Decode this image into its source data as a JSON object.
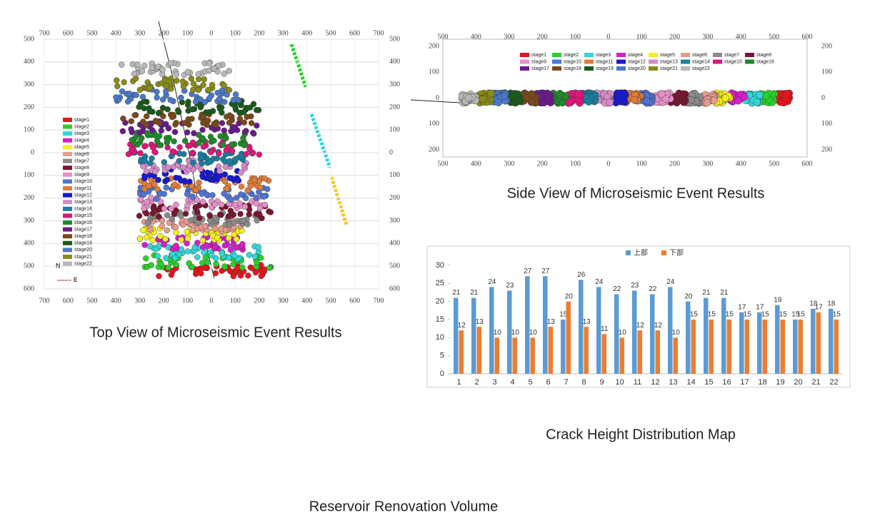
{
  "chart_data": [
    {
      "type": "cluster-scatter",
      "title": "Top View of Microseismic Event Results",
      "xlim": [
        -700,
        700
      ],
      "ylim": [
        -600,
        500
      ],
      "grid": true,
      "xticks": [
        {
          "value": -700,
          "label": "700"
        },
        {
          "value": -600,
          "label": "600"
        },
        {
          "value": -500,
          "label": "500"
        },
        {
          "value": -400,
          "label": "400"
        },
        {
          "value": -300,
          "label": "300"
        },
        {
          "value": -200,
          "label": "200"
        },
        {
          "value": -100,
          "label": "100"
        },
        0,
        100,
        200,
        300,
        400,
        500,
        600,
        700
      ],
      "yticks": [
        500,
        400,
        300,
        200,
        100,
        0,
        {
          "value": -100,
          "label": "100"
        },
        {
          "value": -200,
          "label": "200"
        },
        {
          "value": -300,
          "label": "300"
        },
        {
          "value": -400,
          "label": "400"
        },
        {
          "value": -500,
          "label": "500"
        },
        {
          "value": -600,
          "label": "600"
        }
      ],
      "compass": [
        "N",
        "E"
      ],
      "series": [
        {
          "name": "stage1",
          "color": "#e8141b",
          "x": [
            -220,
            250
          ],
          "y": -520
        },
        {
          "name": "stage2",
          "color": "#29d12a",
          "x": [
            -280,
            250
          ],
          "y": -480
        },
        {
          "name": "stage3",
          "color": "#2fd8d8",
          "x": [
            -260,
            200
          ],
          "y": -440
        },
        {
          "name": "stage4",
          "color": "#d81ec8",
          "x": [
            -300,
            150
          ],
          "y": -400
        },
        {
          "name": "stage5",
          "color": "#f5f01e",
          "x": [
            -300,
            130
          ],
          "y": -360
        },
        {
          "name": "stage6",
          "color": "#e89a8e",
          "x": [
            -300,
            150
          ],
          "y": -320
        },
        {
          "name": "stage7",
          "color": "#8a8a8a",
          "x": [
            -280,
            200
          ],
          "y": -290
        },
        {
          "name": "stage8",
          "color": "#7a1530",
          "x": [
            -310,
            250
          ],
          "y": -260
        },
        {
          "name": "stage9",
          "color": "#e58fc7",
          "x": [
            -300,
            250
          ],
          "y": -220
        },
        {
          "name": "stage10",
          "color": "#4f74d6",
          "x": [
            -300,
            250
          ],
          "y": -180
        },
        {
          "name": "stage11",
          "color": "#e07c3c",
          "x": [
            -300,
            250
          ],
          "y": -140
        },
        {
          "name": "stage12",
          "color": "#1818d0",
          "x": [
            -280,
            130
          ],
          "y": -100
        },
        {
          "name": "stage13",
          "color": "#d48cc8",
          "x": [
            -300,
            150
          ],
          "y": -60
        },
        {
          "name": "stage14",
          "color": "#1a7fa0",
          "x": [
            -330,
            180
          ],
          "y": -20
        },
        {
          "name": "stage15",
          "color": "#e0167a",
          "x": [
            -350,
            200
          ],
          "y": 20
        },
        {
          "name": "stage16",
          "color": "#1f8a2a",
          "x": [
            -350,
            150
          ],
          "y": 60
        },
        {
          "name": "stage17",
          "color": "#6a1a8a",
          "x": [
            -380,
            200
          ],
          "y": 110
        },
        {
          "name": "stage18",
          "color": "#7a4a1a",
          "x": [
            -370,
            180
          ],
          "y": 150
        },
        {
          "name": "stage19",
          "color": "#1a5a1a",
          "x": [
            -340,
            200
          ],
          "y": 200
        },
        {
          "name": "stage20",
          "color": "#4a78c8",
          "x": [
            -400,
            120
          ],
          "y": 250
        },
        {
          "name": "stage21",
          "color": "#8a8a1a",
          "x": [
            -400,
            80
          ],
          "y": 300
        },
        {
          "name": "stage22",
          "color": "#b8b8b8",
          "x": [
            -380,
            80
          ],
          "y": 370
        }
      ]
    },
    {
      "type": "cluster-scatter",
      "title": "Side View of Microseismic Event Results",
      "xlim": [
        -500,
        600
      ],
      "ylim": [
        -200,
        200
      ],
      "grid": false,
      "xticks": [
        {
          "value": -500,
          "label": "500"
        },
        {
          "value": -400,
          "label": "400"
        },
        {
          "value": -300,
          "label": "300"
        },
        {
          "value": -200,
          "label": "200"
        },
        {
          "value": -100,
          "label": "100"
        },
        0,
        100,
        200,
        300,
        400,
        500,
        600
      ],
      "yticks": [
        200,
        100,
        0,
        {
          "value": -100,
          "label": "100"
        },
        {
          "value": -200,
          "label": "200"
        }
      ],
      "series": [
        {
          "name": "stage1",
          "color": "#e8141b",
          "x": [
            503,
            547
          ],
          "y": 0
        },
        {
          "name": "stage2",
          "color": "#29d12a",
          "x": [
            458,
            502
          ],
          "y": 0
        },
        {
          "name": "stage3",
          "color": "#2fd8d8",
          "x": [
            413,
            457
          ],
          "y": 0
        },
        {
          "name": "stage4",
          "color": "#d81ec8",
          "x": [
            368,
            412
          ],
          "y": 0
        },
        {
          "name": "stage5",
          "color": "#f5f01e",
          "x": [
            323,
            367
          ],
          "y": 0
        },
        {
          "name": "stage6",
          "color": "#e89a8e",
          "x": [
            278,
            322
          ],
          "y": 0
        },
        {
          "name": "stage7",
          "color": "#8a8a8a",
          "x": [
            233,
            277
          ],
          "y": 0
        },
        {
          "name": "stage8",
          "color": "#7a1530",
          "x": [
            188,
            232
          ],
          "y": 0
        },
        {
          "name": "stage9",
          "color": "#e58fc7",
          "x": [
            143,
            187
          ],
          "y": 0
        },
        {
          "name": "stage10",
          "color": "#4f74d6",
          "x": [
            98,
            142
          ],
          "y": 0
        },
        {
          "name": "stage11",
          "color": "#e07c3c",
          "x": [
            53,
            97
          ],
          "y": 0
        },
        {
          "name": "stage12",
          "color": "#1818d0",
          "x": [
            8,
            52
          ],
          "y": 0
        },
        {
          "name": "stage13",
          "color": "#d48cc8",
          "x": [
            -37,
            7
          ],
          "y": 0
        },
        {
          "name": "stage14",
          "color": "#1a7fa0",
          "x": [
            -82,
            -38
          ],
          "y": 0
        },
        {
          "name": "stage15",
          "color": "#e0167a",
          "x": [
            -127,
            -83
          ],
          "y": 0
        },
        {
          "name": "stage16",
          "color": "#1f8a2a",
          "x": [
            -172,
            -128
          ],
          "y": 0
        },
        {
          "name": "stage17",
          "color": "#6a1a8a",
          "x": [
            -217,
            -173
          ],
          "y": 0
        },
        {
          "name": "stage18",
          "color": "#7a4a1a",
          "x": [
            -262,
            -218
          ],
          "y": 0
        },
        {
          "name": "stage19",
          "color": "#1a5a1a",
          "x": [
            -307,
            -263
          ],
          "y": 0
        },
        {
          "name": "stage20",
          "color": "#4a78c8",
          "x": [
            -352,
            -308
          ],
          "y": 0
        },
        {
          "name": "stage21",
          "color": "#8a8a1a",
          "x": [
            -397,
            -353
          ],
          "y": 0
        },
        {
          "name": "stage22",
          "color": "#b8b8b8",
          "x": [
            -442,
            -398
          ],
          "y": 0
        }
      ]
    },
    {
      "type": "bar",
      "title": "Crack Height Distribution Map",
      "categories": [
        "1",
        "2",
        "3",
        "4",
        "5",
        "6",
        "7",
        "8",
        "9",
        "10",
        "11",
        "12",
        "13",
        "14",
        "15",
        "16",
        "17",
        "18",
        "19",
        "20",
        "21",
        "22"
      ],
      "ylim": [
        0,
        30
      ],
      "yticks": [
        0,
        5,
        10,
        15,
        20,
        25,
        30
      ],
      "series": [
        {
          "name": "上部",
          "color": "#5b9bd5",
          "values": [
            21,
            21,
            24,
            23,
            27,
            27,
            15,
            26,
            24,
            22,
            23,
            22,
            24,
            20,
            21,
            21,
            17,
            17,
            19,
            15,
            18,
            18
          ]
        },
        {
          "name": "下部",
          "color": "#ed7d31",
          "values": [
            12,
            13,
            10,
            10,
            10,
            13,
            20,
            13,
            11,
            10,
            12,
            12,
            10,
            15,
            15,
            15,
            15,
            15,
            15,
            15,
            17,
            15
          ]
        }
      ]
    }
  ],
  "footer_caption": "Reservoir Renovation Volume"
}
